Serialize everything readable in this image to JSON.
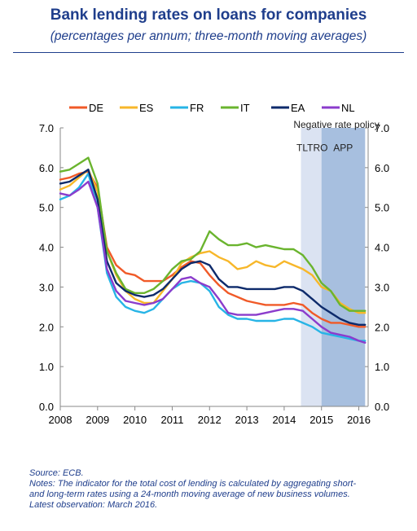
{
  "header": {
    "title": "Bank lending rates on loans for companies",
    "subtitle": "(percentages per annum; three-month moving averages)"
  },
  "chart_data": {
    "type": "line",
    "x_ticks": [
      2008,
      2009,
      2010,
      2011,
      2012,
      2013,
      2014,
      2015,
      2016
    ],
    "xlim": [
      2008.0,
      2016.25
    ],
    "ylim": [
      0,
      7
    ],
    "y_ticks": [
      "0.0",
      "1.0",
      "2.0",
      "3.0",
      "4.0",
      "5.0",
      "6.0",
      "7.0"
    ],
    "grid": false,
    "legend_position": "top",
    "shaded_regions": [
      {
        "label": "TLTRO",
        "from": 2014.45,
        "to": 2015.0,
        "color": "#dbe3f2"
      },
      {
        "label": "APP",
        "from": 2015.0,
        "to": 2016.17,
        "color": "#a7bfdf"
      }
    ],
    "annotations": [
      {
        "text": "Negative rate policy",
        "x": 2015.4,
        "y": 7.0
      },
      {
        "text": "TLTRO",
        "x": 2014.75,
        "y": 6.4
      },
      {
        "text": "APP",
        "x": 2015.58,
        "y": 6.4
      }
    ],
    "x": [
      2008.0,
      2008.25,
      2008.5,
      2008.75,
      2009.0,
      2009.25,
      2009.5,
      2009.75,
      2010.0,
      2010.25,
      2010.5,
      2010.75,
      2011.0,
      2011.25,
      2011.5,
      2011.75,
      2012.0,
      2012.25,
      2012.5,
      2012.75,
      2013.0,
      2013.25,
      2013.5,
      2013.75,
      2014.0,
      2014.25,
      2014.5,
      2014.75,
      2015.0,
      2015.25,
      2015.5,
      2015.75,
      2016.0,
      2016.17
    ],
    "series": [
      {
        "name": "DE",
        "color": "#f05a28",
        "values": [
          5.7,
          5.75,
          5.85,
          5.9,
          5.5,
          4.0,
          3.55,
          3.35,
          3.3,
          3.15,
          3.15,
          3.15,
          3.3,
          3.5,
          3.65,
          3.6,
          3.3,
          3.05,
          2.85,
          2.75,
          2.65,
          2.6,
          2.55,
          2.55,
          2.55,
          2.6,
          2.55,
          2.35,
          2.2,
          2.1,
          2.1,
          2.05,
          2.0,
          2.0
        ]
      },
      {
        "name": "ES",
        "color": "#f7b72a",
        "values": [
          5.45,
          5.55,
          5.75,
          5.95,
          5.4,
          3.9,
          3.3,
          2.9,
          2.7,
          2.6,
          2.6,
          2.9,
          3.2,
          3.6,
          3.75,
          3.85,
          3.9,
          3.75,
          3.65,
          3.45,
          3.5,
          3.65,
          3.55,
          3.5,
          3.65,
          3.55,
          3.45,
          3.3,
          3.0,
          2.9,
          2.6,
          2.45,
          2.35,
          2.35
        ]
      },
      {
        "name": "FR",
        "color": "#27b4e6",
        "values": [
          5.2,
          5.3,
          5.5,
          5.85,
          5.0,
          3.35,
          2.75,
          2.5,
          2.4,
          2.35,
          2.45,
          2.7,
          2.95,
          3.1,
          3.15,
          3.1,
          2.9,
          2.5,
          2.3,
          2.2,
          2.2,
          2.15,
          2.15,
          2.15,
          2.2,
          2.2,
          2.1,
          2.0,
          1.85,
          1.8,
          1.75,
          1.7,
          1.65,
          1.65
        ]
      },
      {
        "name": "IT",
        "color": "#6ab42e",
        "values": [
          5.9,
          5.95,
          6.1,
          6.25,
          5.6,
          3.9,
          3.35,
          2.95,
          2.85,
          2.85,
          2.95,
          3.15,
          3.45,
          3.65,
          3.7,
          3.9,
          4.4,
          4.2,
          4.05,
          4.05,
          4.1,
          4.0,
          4.05,
          4.0,
          3.95,
          3.95,
          3.8,
          3.5,
          3.1,
          2.9,
          2.55,
          2.4,
          2.4,
          2.4
        ]
      },
      {
        "name": "EA",
        "color": "#0d2a6b",
        "values": [
          5.6,
          5.65,
          5.8,
          5.95,
          5.2,
          3.65,
          3.1,
          2.9,
          2.8,
          2.75,
          2.8,
          2.95,
          3.2,
          3.45,
          3.6,
          3.65,
          3.55,
          3.2,
          3.0,
          3.0,
          2.95,
          2.95,
          2.95,
          2.95,
          3.0,
          3.0,
          2.9,
          2.7,
          2.5,
          2.35,
          2.2,
          2.1,
          2.05,
          2.05
        ]
      },
      {
        "name": "NL",
        "color": "#8b3ccc",
        "values": [
          5.35,
          5.3,
          5.45,
          5.65,
          5.0,
          3.45,
          2.9,
          2.65,
          2.6,
          2.55,
          2.6,
          2.7,
          2.95,
          3.2,
          3.25,
          3.1,
          3.0,
          2.7,
          2.35,
          2.3,
          2.3,
          2.3,
          2.35,
          2.4,
          2.45,
          2.45,
          2.4,
          2.2,
          2.0,
          1.85,
          1.8,
          1.75,
          1.65,
          1.6
        ]
      }
    ]
  },
  "footer": {
    "source": "Source: ECB.",
    "notes_line1": "Notes: The indicator for the total cost of lending is calculated by aggregating short-",
    "notes_line2": "and long-term rates using a 24-month moving average of new business volumes.",
    "notes_line3": "Latest observation: March 2016."
  }
}
